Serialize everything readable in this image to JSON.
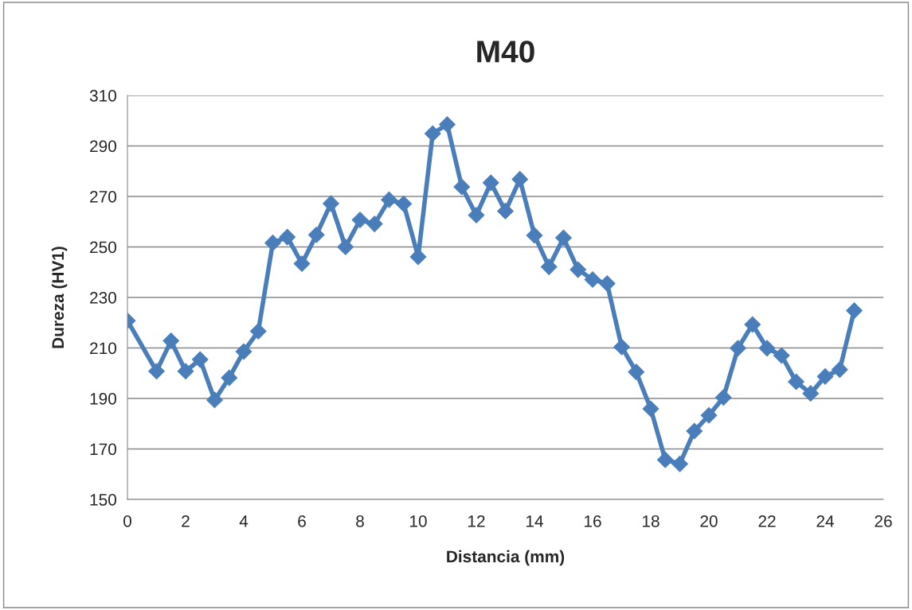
{
  "chart_data": {
    "type": "line",
    "title": "M40",
    "xlabel": "Distancia (mm)",
    "ylabel": "Dureza (HV1)",
    "x": [
      0,
      1,
      1.5,
      2,
      2.5,
      3,
      3.5,
      4,
      4.5,
      5,
      5.5,
      6,
      6.5,
      7,
      7.5,
      8,
      8.5,
      9,
      9.5,
      10,
      10.5,
      11,
      11.5,
      12,
      12.5,
      13,
      13.5,
      14,
      14.5,
      15,
      15.5,
      16,
      16.5,
      17,
      17.5,
      18,
      18.5,
      19,
      19.5,
      20,
      20.5,
      21,
      21.5,
      22,
      22.5,
      23,
      23.5,
      24,
      24.5,
      25
    ],
    "series": [
      {
        "color": "#4a7ebb",
        "values": [
          220.8,
          200.8,
          212.8,
          200.8,
          205.4,
          189.4,
          198.2,
          208.6,
          216.6,
          251.6,
          253.9,
          243.4,
          254.8,
          267.2,
          250,
          260.7,
          259.1,
          268.7,
          267.1,
          246.1,
          294.9,
          298.5,
          273.8,
          262.6,
          275.4,
          264.2,
          276.8,
          254.6,
          242.1,
          253.6,
          241,
          237.1,
          235.5,
          210.4,
          200.5,
          185.9,
          165.7,
          164.1,
          177.1,
          183.3,
          190.4,
          209.9,
          219.3,
          209.9,
          207,
          196.6,
          192,
          198.7,
          201.4,
          224.8
        ]
      }
    ],
    "xlim": [
      0,
      26
    ],
    "xticks": [
      0,
      2,
      4,
      6,
      8,
      10,
      12,
      14,
      16,
      18,
      20,
      22,
      24,
      26
    ],
    "ylim": [
      150,
      310
    ],
    "yticks": [
      150,
      170,
      190,
      210,
      230,
      250,
      270,
      290,
      310
    ],
    "grid": "y",
    "marker": "diamond",
    "line_style": "solid"
  }
}
